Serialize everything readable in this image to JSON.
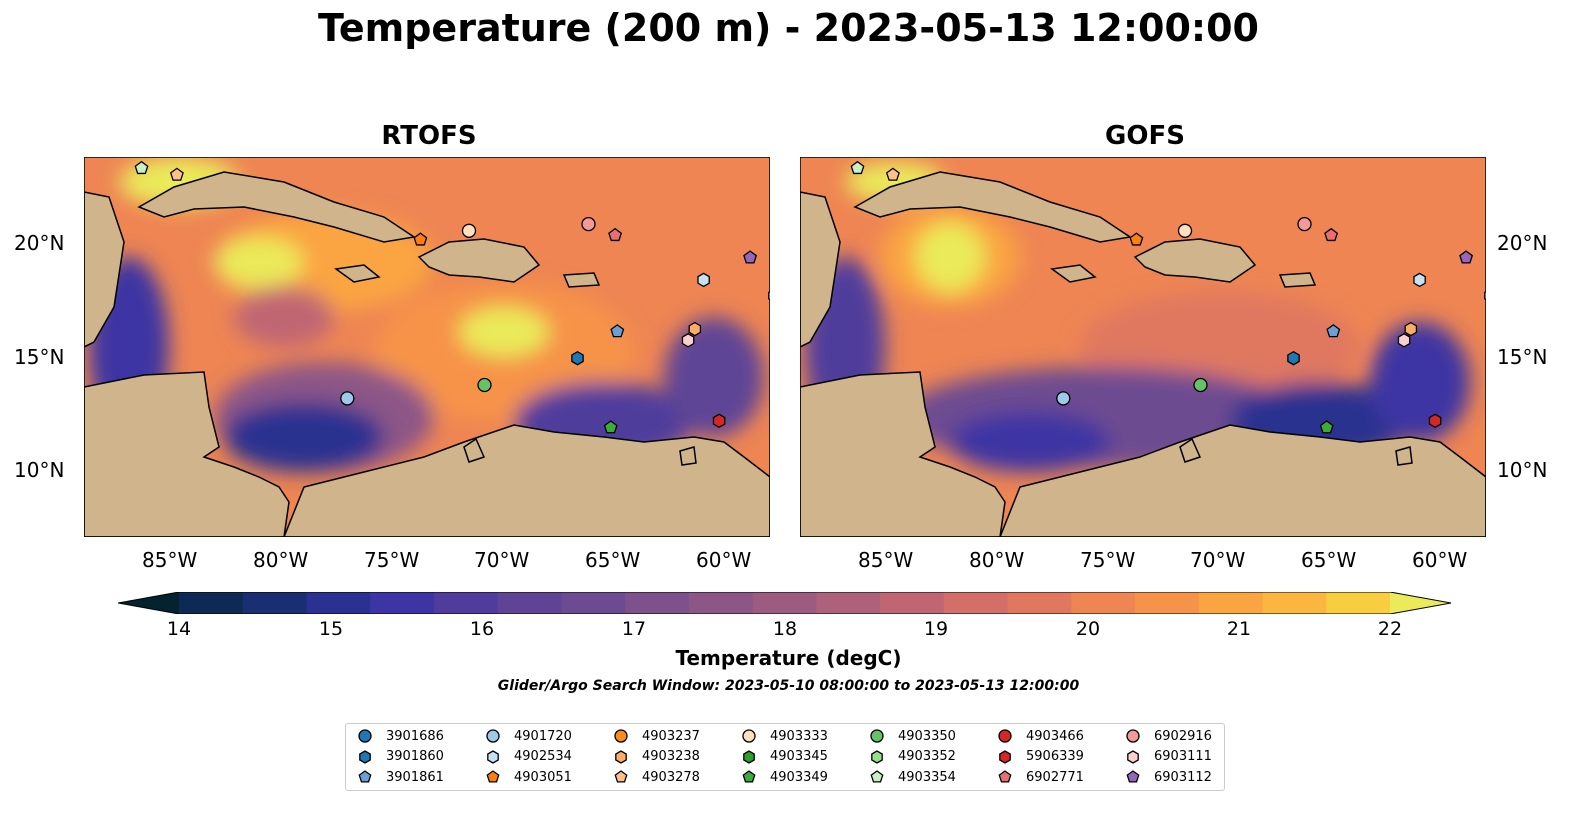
{
  "title": "Temperature (200 m) - 2023-05-13 12:00:00",
  "panels": [
    {
      "title": "RTOFS"
    },
    {
      "title": "GOFS"
    }
  ],
  "map": {
    "lon_range": [
      -89,
      -58
    ],
    "lat_range": [
      7,
      24
    ],
    "lon_ticks": [
      "85°W",
      "80°W",
      "75°W",
      "70°W",
      "65°W",
      "60°W"
    ],
    "lat_ticks": [
      "20°N",
      "15°N",
      "10°N"
    ],
    "ocean_color": "#94b4e0",
    "land_color": "#d0b48c"
  },
  "colorbar": {
    "label": "Temperature (degC)",
    "min": 14,
    "max": 22,
    "ticks": [
      "14",
      "15",
      "16",
      "17",
      "18",
      "19",
      "20",
      "21",
      "22"
    ],
    "colormap": "thermal",
    "colors": [
      "#04232f",
      "#0c2a54",
      "#1a2e72",
      "#2a3190",
      "#3c35a3",
      "#4f3c9c",
      "#5f4496",
      "#6d4b91",
      "#7c518c",
      "#8c5787",
      "#9c5c82",
      "#ae617b",
      "#c06673",
      "#d36e69",
      "#e07860",
      "#ee8553",
      "#f6934a",
      "#faa442",
      "#fbb63f",
      "#f7ce3f",
      "#eaea5a"
    ]
  },
  "search_window": "Glider/Argo Search Window: 2023-05-10 08:00:00 to 2023-05-13 12:00:00",
  "legend": [
    {
      "id": "3901686",
      "color": "#1f77b4",
      "marker": "circle"
    },
    {
      "id": "3901860",
      "color": "#1f77b4",
      "marker": "hexagon"
    },
    {
      "id": "3901861",
      "color": "#6aa0d8",
      "marker": "pentagon"
    },
    {
      "id": "4901720",
      "color": "#9ecae9",
      "marker": "circle"
    },
    {
      "id": "4902534",
      "color": "#c6e2f7",
      "marker": "hexagon"
    },
    {
      "id": "4903051",
      "color": "#ff7f0e",
      "marker": "pentagon"
    },
    {
      "id": "4903237",
      "color": "#ff8c1a",
      "marker": "circle"
    },
    {
      "id": "4903238",
      "color": "#ffad66",
      "marker": "hexagon"
    },
    {
      "id": "4903278",
      "color": "#ffc08a",
      "marker": "pentagon"
    },
    {
      "id": "4903333",
      "color": "#fde0c0",
      "marker": "circle"
    },
    {
      "id": "4903345",
      "color": "#2ca02c",
      "marker": "hexagon"
    },
    {
      "id": "4903349",
      "color": "#3daa3d",
      "marker": "pentagon"
    },
    {
      "id": "4903350",
      "color": "#66c266",
      "marker": "circle"
    },
    {
      "id": "4903352",
      "color": "#98df8a",
      "marker": "hexagon"
    },
    {
      "id": "4903354",
      "color": "#c8f0c0",
      "marker": "pentagon"
    },
    {
      "id": "4903466",
      "color": "#d62728",
      "marker": "circle"
    },
    {
      "id": "5906339",
      "color": "#d62728",
      "marker": "hexagon"
    },
    {
      "id": "6902771",
      "color": "#e87070",
      "marker": "pentagon"
    },
    {
      "id": "6902916",
      "color": "#f19a9a",
      "marker": "circle"
    },
    {
      "id": "6903111",
      "color": "#fbd0d0",
      "marker": "hexagon"
    },
    {
      "id": "6903112",
      "color": "#9467bd",
      "marker": "pentagon"
    }
  ],
  "floats": [
    {
      "id": "4903354",
      "lon": -86.4,
      "lat": 23.5
    },
    {
      "id": "4903278",
      "lon": -84.8,
      "lat": 23.2
    },
    {
      "id": "4903051",
      "lon": -73.8,
      "lat": 20.3
    },
    {
      "id": "4903333",
      "lon": -71.6,
      "lat": 20.7
    },
    {
      "id": "6902916",
      "lon": -66.2,
      "lat": 21.0
    },
    {
      "id": "6902771",
      "lon": -65.0,
      "lat": 20.5
    },
    {
      "id": "4902534",
      "lon": -61.0,
      "lat": 18.5
    },
    {
      "id": "6903112",
      "lon": -58.9,
      "lat": 19.5
    },
    {
      "id": "4903352",
      "lon": -57.8,
      "lat": 17.8
    },
    {
      "id": "3901861",
      "lon": -64.9,
      "lat": 16.2
    },
    {
      "id": "4903238",
      "lon": -61.4,
      "lat": 16.3
    },
    {
      "id": "6903111",
      "lon": -61.7,
      "lat": 15.8
    },
    {
      "id": "3901860",
      "lon": -66.7,
      "lat": 15.0
    },
    {
      "id": "4903350",
      "lon": -70.9,
      "lat": 13.8
    },
    {
      "id": "4901720",
      "lon": -77.1,
      "lat": 13.2
    },
    {
      "id": "4903349",
      "lon": -65.2,
      "lat": 11.9
    },
    {
      "id": "5906339",
      "lon": -60.3,
      "lat": 12.2
    }
  ]
}
